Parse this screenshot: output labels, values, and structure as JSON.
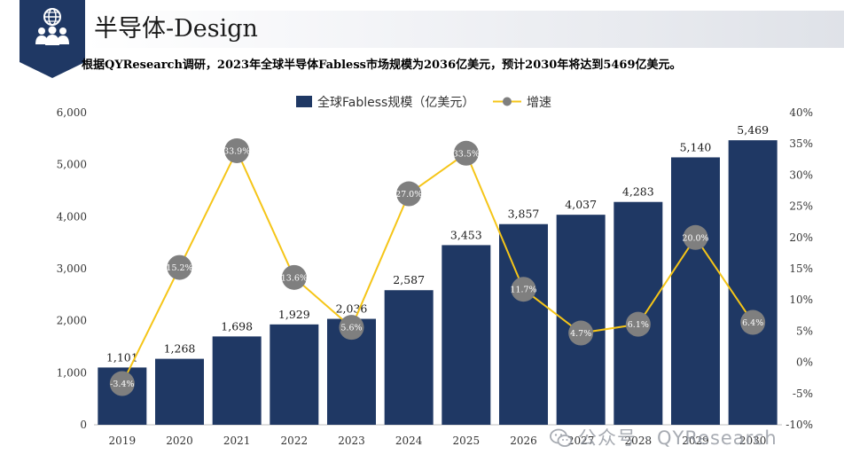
{
  "header": {
    "title": "半导体-Design",
    "icon": "team-globe-icon",
    "brand_color": "#1f3864"
  },
  "subtitle": "根据QYResearch调研，2023年全球半导体Fabless市场规模为2036亿美元，预计2030年将达到5469亿美元。",
  "watermark": {
    "text": "公众号 · QYResearch",
    "icon": "wechat-icon"
  },
  "chart_data": {
    "type": "bar",
    "categories": [
      "2019",
      "2020",
      "2021",
      "2022",
      "2023",
      "2024",
      "2025",
      "2026",
      "2027",
      "2028",
      "2029",
      "2030"
    ],
    "series": [
      {
        "name": "全球Fabless规模（亿美元）",
        "type": "bar",
        "axis": "left",
        "color": "#1f3864",
        "values": [
          1101,
          1268,
          1698,
          1929,
          2036,
          2587,
          3453,
          3857,
          4037,
          4283,
          5140,
          5469
        ],
        "labels": [
          "1,101",
          "1,268",
          "1,698",
          "1,929",
          "2,036",
          "2,587",
          "3,453",
          "3,857",
          "4,037",
          "4,283",
          "5,140",
          "5,469"
        ]
      },
      {
        "name": "增速",
        "type": "line",
        "axis": "right",
        "color": "#f5c518",
        "marker_color": "#7f7f7f",
        "values": [
          -3.4,
          15.2,
          33.9,
          13.6,
          5.6,
          27.0,
          33.5,
          11.7,
          4.7,
          6.1,
          20.0,
          6.4
        ],
        "labels": [
          "-3.4%",
          "15.2%",
          "33.9%",
          "13.6%",
          "5.6%",
          "27.0%",
          "33.5%",
          "11.7%",
          "4.7%",
          "6.1%",
          "20.0%",
          "6.4%"
        ]
      }
    ],
    "y_left": {
      "min": 0,
      "max": 6000,
      "ticks": [
        "0",
        "1,000",
        "2,000",
        "3,000",
        "4,000",
        "5,000",
        "6,000"
      ]
    },
    "y_right": {
      "min": -10,
      "max": 40,
      "ticks": [
        "-10%",
        "-5%",
        "0%",
        "5%",
        "10%",
        "15%",
        "20%",
        "25%",
        "30%",
        "35%",
        "40%"
      ]
    },
    "legend_position": "top-center",
    "grid": false
  }
}
